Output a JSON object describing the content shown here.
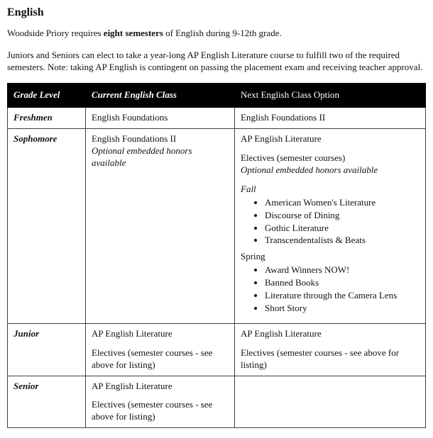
{
  "title": "English",
  "intro_prefix": "Woodside Priory requires ",
  "intro_bold": "eight semesters",
  "intro_suffix": " of English during 9-12th grade.",
  "note": "Juniors and Seniors can elect to take a year-long AP English Literature course to fulfill two of the required semesters. Note: taking AP English is contingent on passing the placement exam and receiving teacher approval.",
  "table": {
    "headers": {
      "grade": "Grade Level",
      "current": "Current English Class",
      "next": "Next English Class Option"
    },
    "rows": {
      "freshmen": {
        "grade": "Freshmen",
        "current": "English Foundations",
        "next": "English Foundations II"
      },
      "sophomore": {
        "grade": "Sophomore",
        "current_line1": "English Foundations II",
        "current_line2": "Optional embedded honors available",
        "next_line1": "AP English Literature",
        "next_line2": "Electives (semester courses)",
        "next_line3": "Optional embedded honors available",
        "fall_label": "Fall",
        "fall": [
          "American Women's Literature",
          "Discourse of Dining",
          "Gothic Literature",
          "Transcendentalists & Beats"
        ],
        "spring_label": "Spring",
        "spring": [
          "Award Winners NOW!",
          "Banned Books",
          "Literature through the Camera Lens",
          "Short Story"
        ]
      },
      "junior": {
        "grade": "Junior",
        "current_line1": "AP English Literature",
        "current_line2": "Electives (semester courses - see above for listing)",
        "next_line1": "AP English Literature",
        "next_line2": "Electives (semester courses - see above for listing)"
      },
      "senior": {
        "grade": "Senior",
        "current_line1": "AP English Literature",
        "current_line2": "Electives (semester courses - see above for listing)",
        "next": ""
      }
    }
  }
}
